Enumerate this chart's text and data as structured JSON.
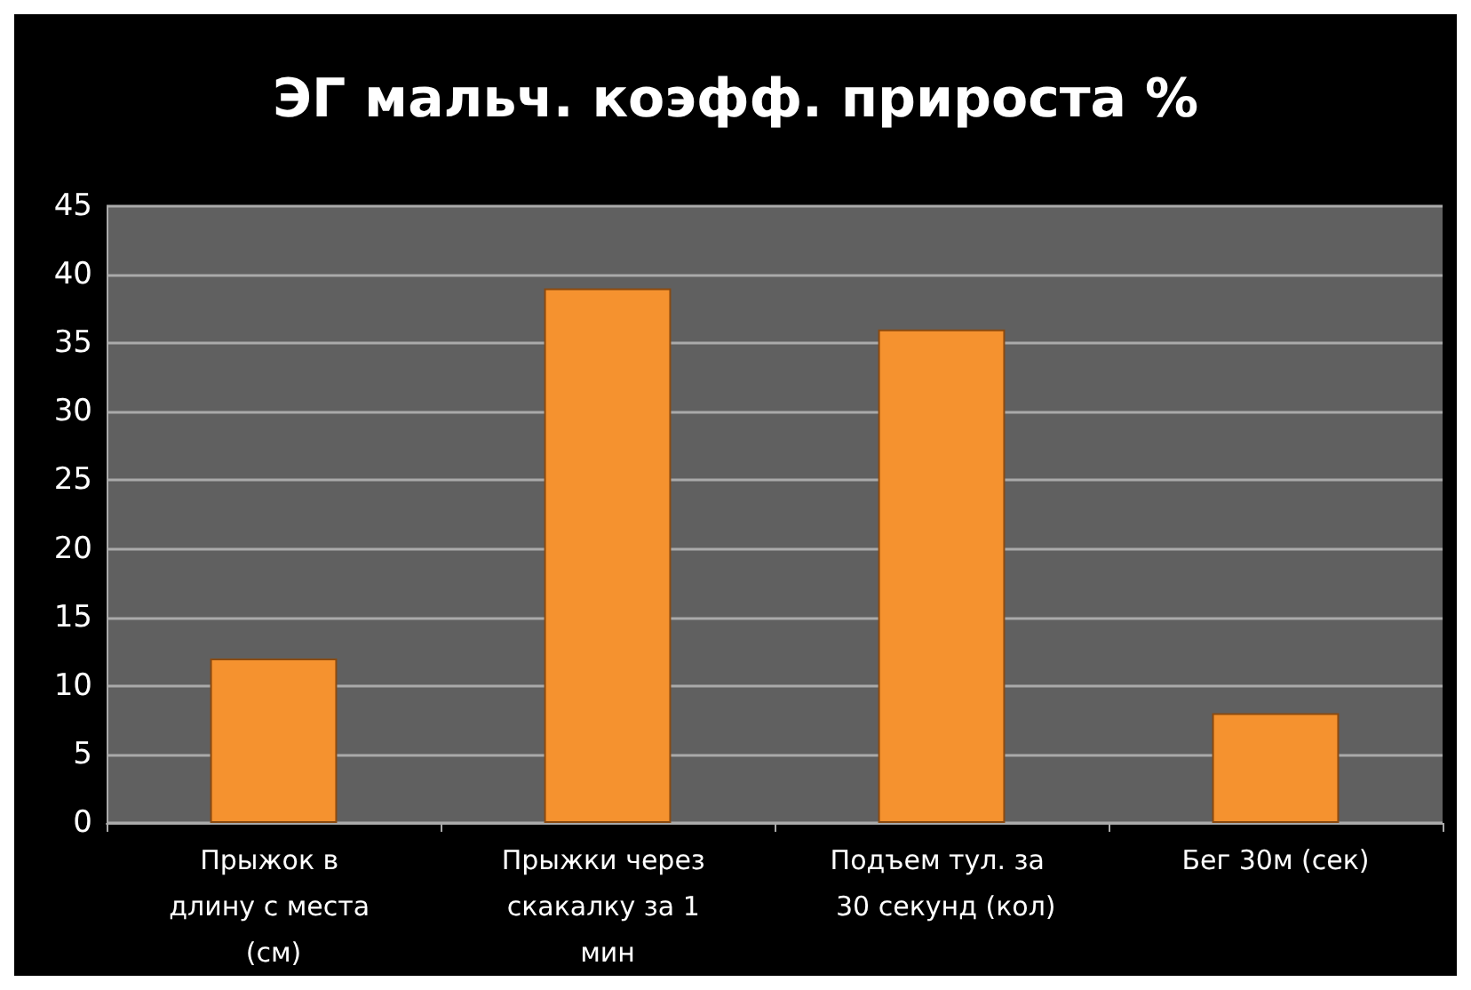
{
  "chart_data": {
    "type": "bar",
    "title": "ЭГ мальч. коэфф. прироста %",
    "categories": [
      "Прыжок в длину с места (см)",
      "Прыжки через скакалку за 1 мин",
      "Подъем тул. за  30 секунд (кол)",
      "Бег 30м (сек)"
    ],
    "values": [
      12,
      39,
      36,
      8
    ],
    "color": "#f5922f",
    "ylim": [
      0,
      45
    ],
    "yticks": [
      0,
      5,
      10,
      15,
      20,
      25,
      30,
      35,
      40,
      45
    ],
    "grid": "y"
  }
}
